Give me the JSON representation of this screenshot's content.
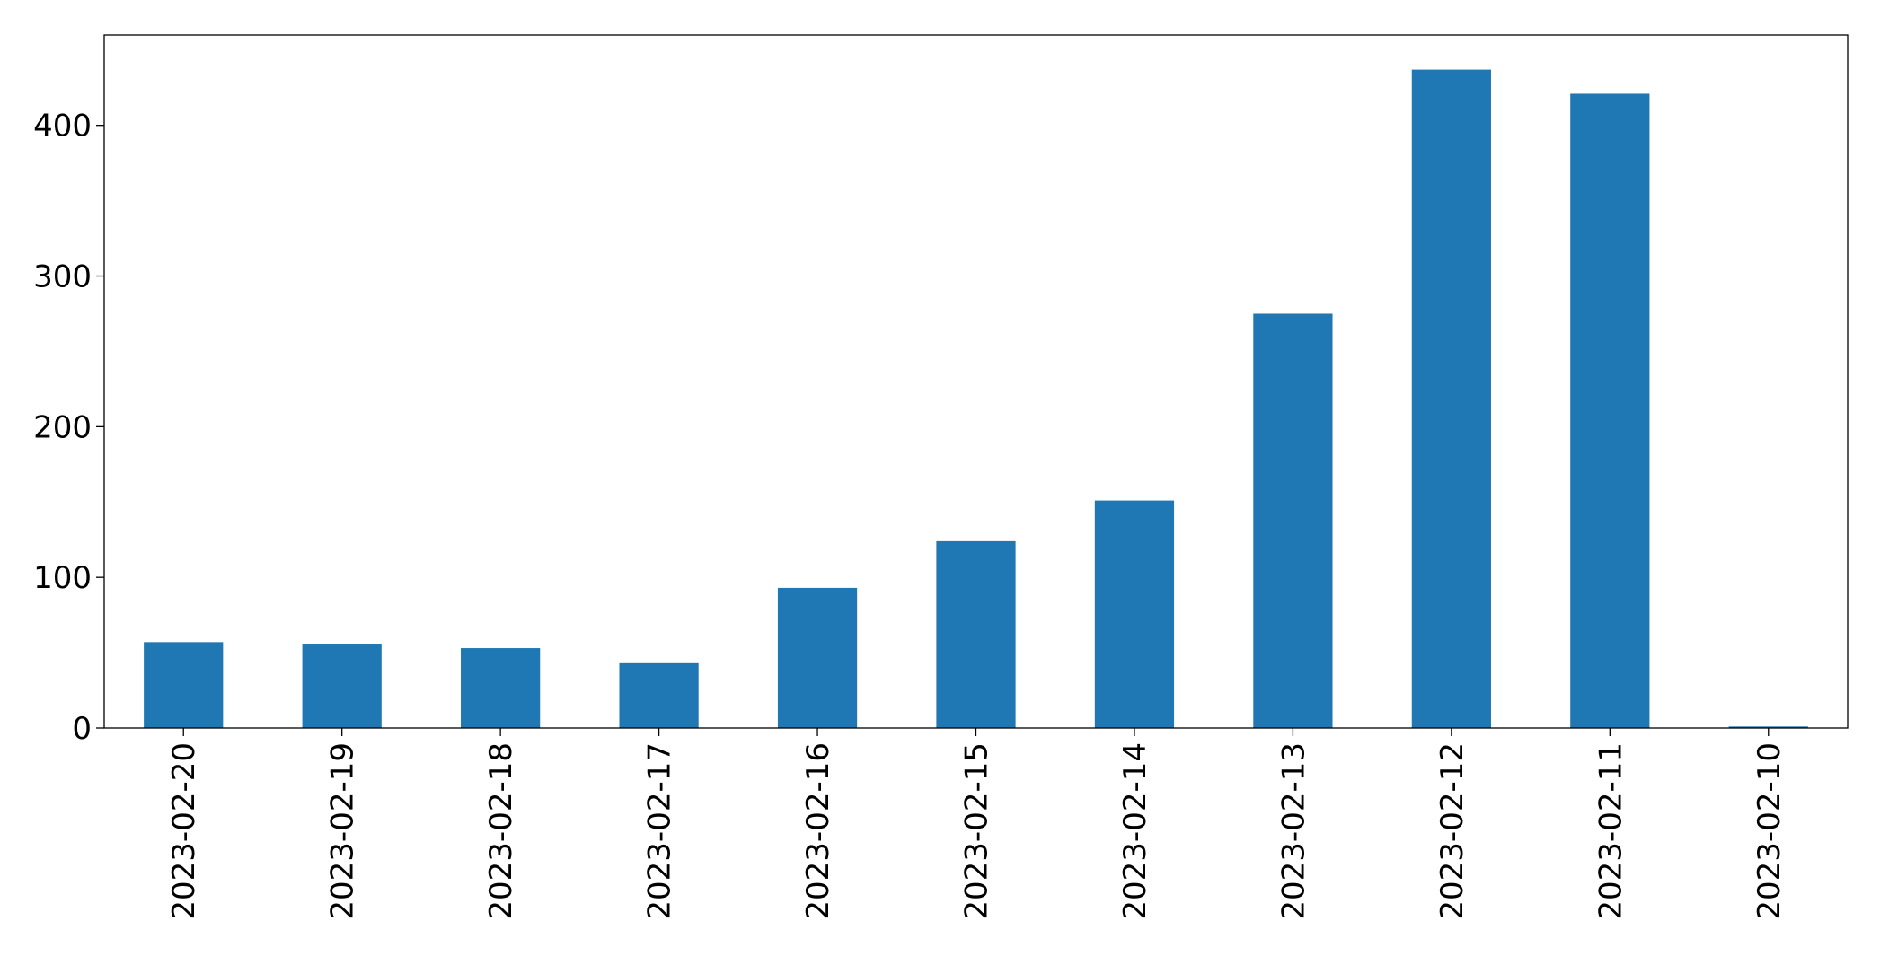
{
  "chart_data": {
    "type": "bar",
    "title": "",
    "xlabel": "",
    "ylabel": "",
    "categories": [
      "2023-02-20",
      "2023-02-19",
      "2023-02-18",
      "2023-02-17",
      "2023-02-16",
      "2023-02-15",
      "2023-02-14",
      "2023-02-13",
      "2023-02-12",
      "2023-02-11",
      "2023-02-10"
    ],
    "values": [
      57,
      56,
      53,
      43,
      93,
      124,
      151,
      275,
      437,
      421,
      1
    ],
    "ylim": [
      0,
      460
    ],
    "yticks": [
      0,
      100,
      200,
      300,
      400
    ],
    "bar_color": "#1f77b4",
    "grid": false,
    "legend": "none"
  }
}
